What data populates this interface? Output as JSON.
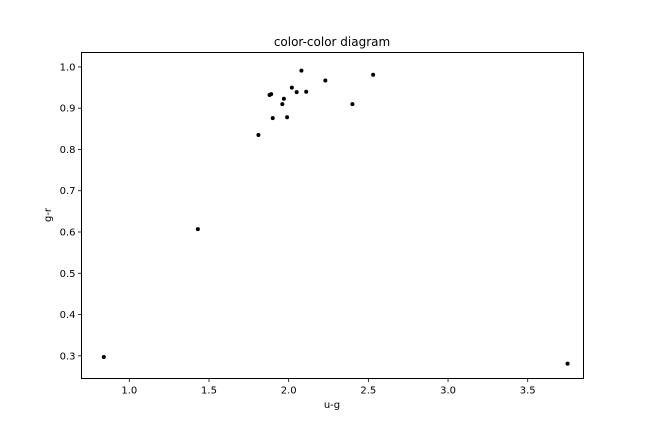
{
  "chart_data": {
    "type": "scatter",
    "title": "color-color diagram",
    "xlabel": "u-g",
    "ylabel": "g-r",
    "xlim": [
      0.7,
      3.85
    ],
    "ylim": [
      0.245,
      1.035
    ],
    "grid": false,
    "xticks": [
      1.0,
      1.5,
      2.0,
      2.5,
      3.0,
      3.5
    ],
    "xtick_labels": [
      "1.0",
      "1.5",
      "2.0",
      "2.5",
      "3.0",
      "3.5"
    ],
    "yticks": [
      0.3,
      0.4,
      0.5,
      0.6,
      0.7,
      0.8,
      0.9,
      1.0
    ],
    "ytick_labels": [
      "0.3",
      "0.4",
      "0.5",
      "0.6",
      "0.7",
      "0.8",
      "0.9",
      "1.0"
    ],
    "marker_color": "#000000",
    "points": [
      {
        "x": 0.84,
        "y": 0.297
      },
      {
        "x": 1.43,
        "y": 0.607
      },
      {
        "x": 1.81,
        "y": 0.835
      },
      {
        "x": 1.88,
        "y": 0.932
      },
      {
        "x": 1.89,
        "y": 0.934
      },
      {
        "x": 1.9,
        "y": 0.876
      },
      {
        "x": 1.96,
        "y": 0.91
      },
      {
        "x": 1.97,
        "y": 0.923
      },
      {
        "x": 1.99,
        "y": 0.878
      },
      {
        "x": 2.02,
        "y": 0.95
      },
      {
        "x": 2.05,
        "y": 0.939
      },
      {
        "x": 2.08,
        "y": 0.991
      },
      {
        "x": 2.11,
        "y": 0.94
      },
      {
        "x": 2.23,
        "y": 0.967
      },
      {
        "x": 2.4,
        "y": 0.91
      },
      {
        "x": 2.53,
        "y": 0.981
      },
      {
        "x": 3.75,
        "y": 0.281
      }
    ]
  }
}
